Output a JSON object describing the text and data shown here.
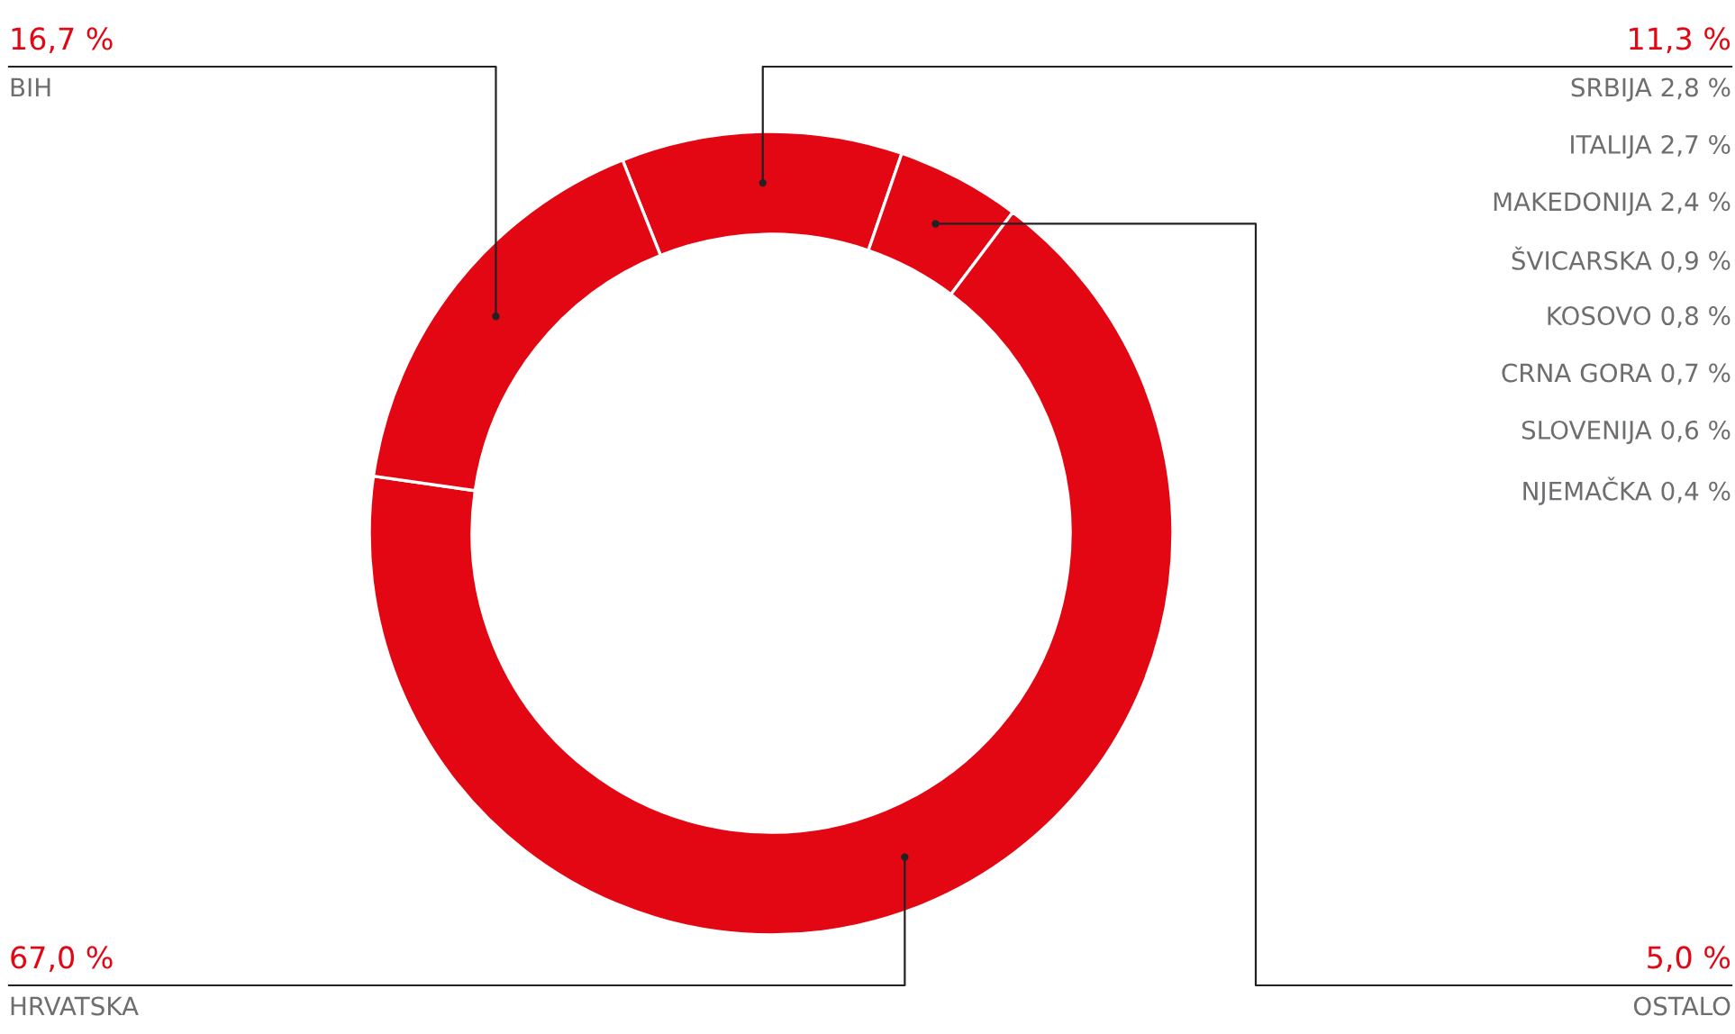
{
  "chart_data": {
    "type": "donut",
    "categories": [
      null,
      "OSTALO",
      "HRVATSKA",
      "BIH"
    ],
    "values": [
      11.3,
      5.0,
      67.0,
      16.7
    ],
    "colors": [
      "#e30613",
      "#e30613",
      "#e30613",
      "#e30613"
    ],
    "value_labels": [
      "11,3 %",
      "5,0 %",
      "67,0 %",
      "16,7 %"
    ],
    "annotations": [
      "SRBIJA 2,8 %",
      "ITALIJA 2,7 %",
      "MAKEDONIJA 2,4 %",
      "ŠVICARSKA 0,9 %",
      "KOSOVO 0,8 %",
      "CRNA GORA 0,7 %",
      "SLOVENIJA 0,6 %",
      "NJEMAČKA 0,4 %"
    ]
  }
}
